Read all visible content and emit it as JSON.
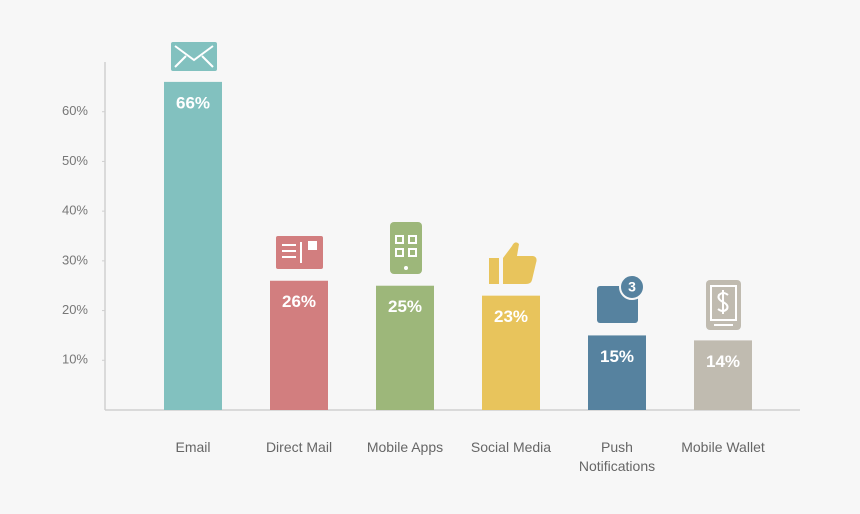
{
  "chart_data": {
    "type": "bar",
    "categories": [
      "Email",
      "Direct Mail",
      "Mobile Apps",
      "Social Media",
      "Push Notifications",
      "Mobile Wallet"
    ],
    "values": [
      66,
      26,
      25,
      23,
      15,
      14
    ],
    "value_labels": [
      "66%",
      "26%",
      "25%",
      "23%",
      "15%",
      "14%"
    ],
    "colors": [
      "#82c1bf",
      "#d27e7f",
      "#9db77a",
      "#e8c45c",
      "#56829f",
      "#c0bbb0"
    ],
    "ylim": [
      0,
      70
    ],
    "yticks": [
      {
        "value": 10,
        "label": "10%"
      },
      {
        "value": 20,
        "label": "20%"
      },
      {
        "value": 30,
        "label": "30%"
      },
      {
        "value": 40,
        "label": "40%"
      },
      {
        "value": 50,
        "label": "50%"
      },
      {
        "value": 60,
        "label": "60%"
      }
    ],
    "grid": false
  },
  "icon_badge": "3"
}
